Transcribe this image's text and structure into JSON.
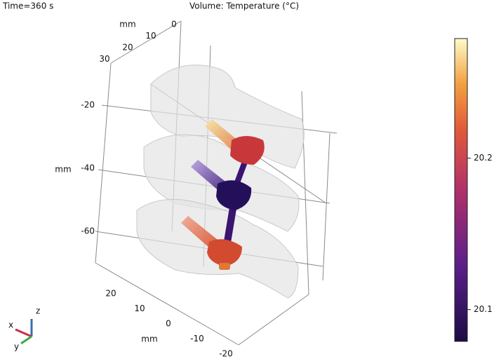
{
  "chart_data": {
    "type": "volume",
    "time_label": "Time=360 s",
    "title": "Volume: Temperature (°C)",
    "axes": [
      {
        "label": "mm",
        "ticks": [
          -20,
          -40,
          -60
        ]
      },
      {
        "label": "mm",
        "ticks": [
          0,
          10,
          20,
          30
        ]
      },
      {
        "label": "mm",
        "ticks": [
          20,
          10,
          0,
          -10,
          -20
        ]
      }
    ],
    "colorbar": {
      "range": [
        20.079,
        20.279
      ],
      "ticks": [
        20.1,
        20.2
      ]
    },
    "triad": {
      "x": "x",
      "y": "y",
      "z": "z"
    }
  }
}
